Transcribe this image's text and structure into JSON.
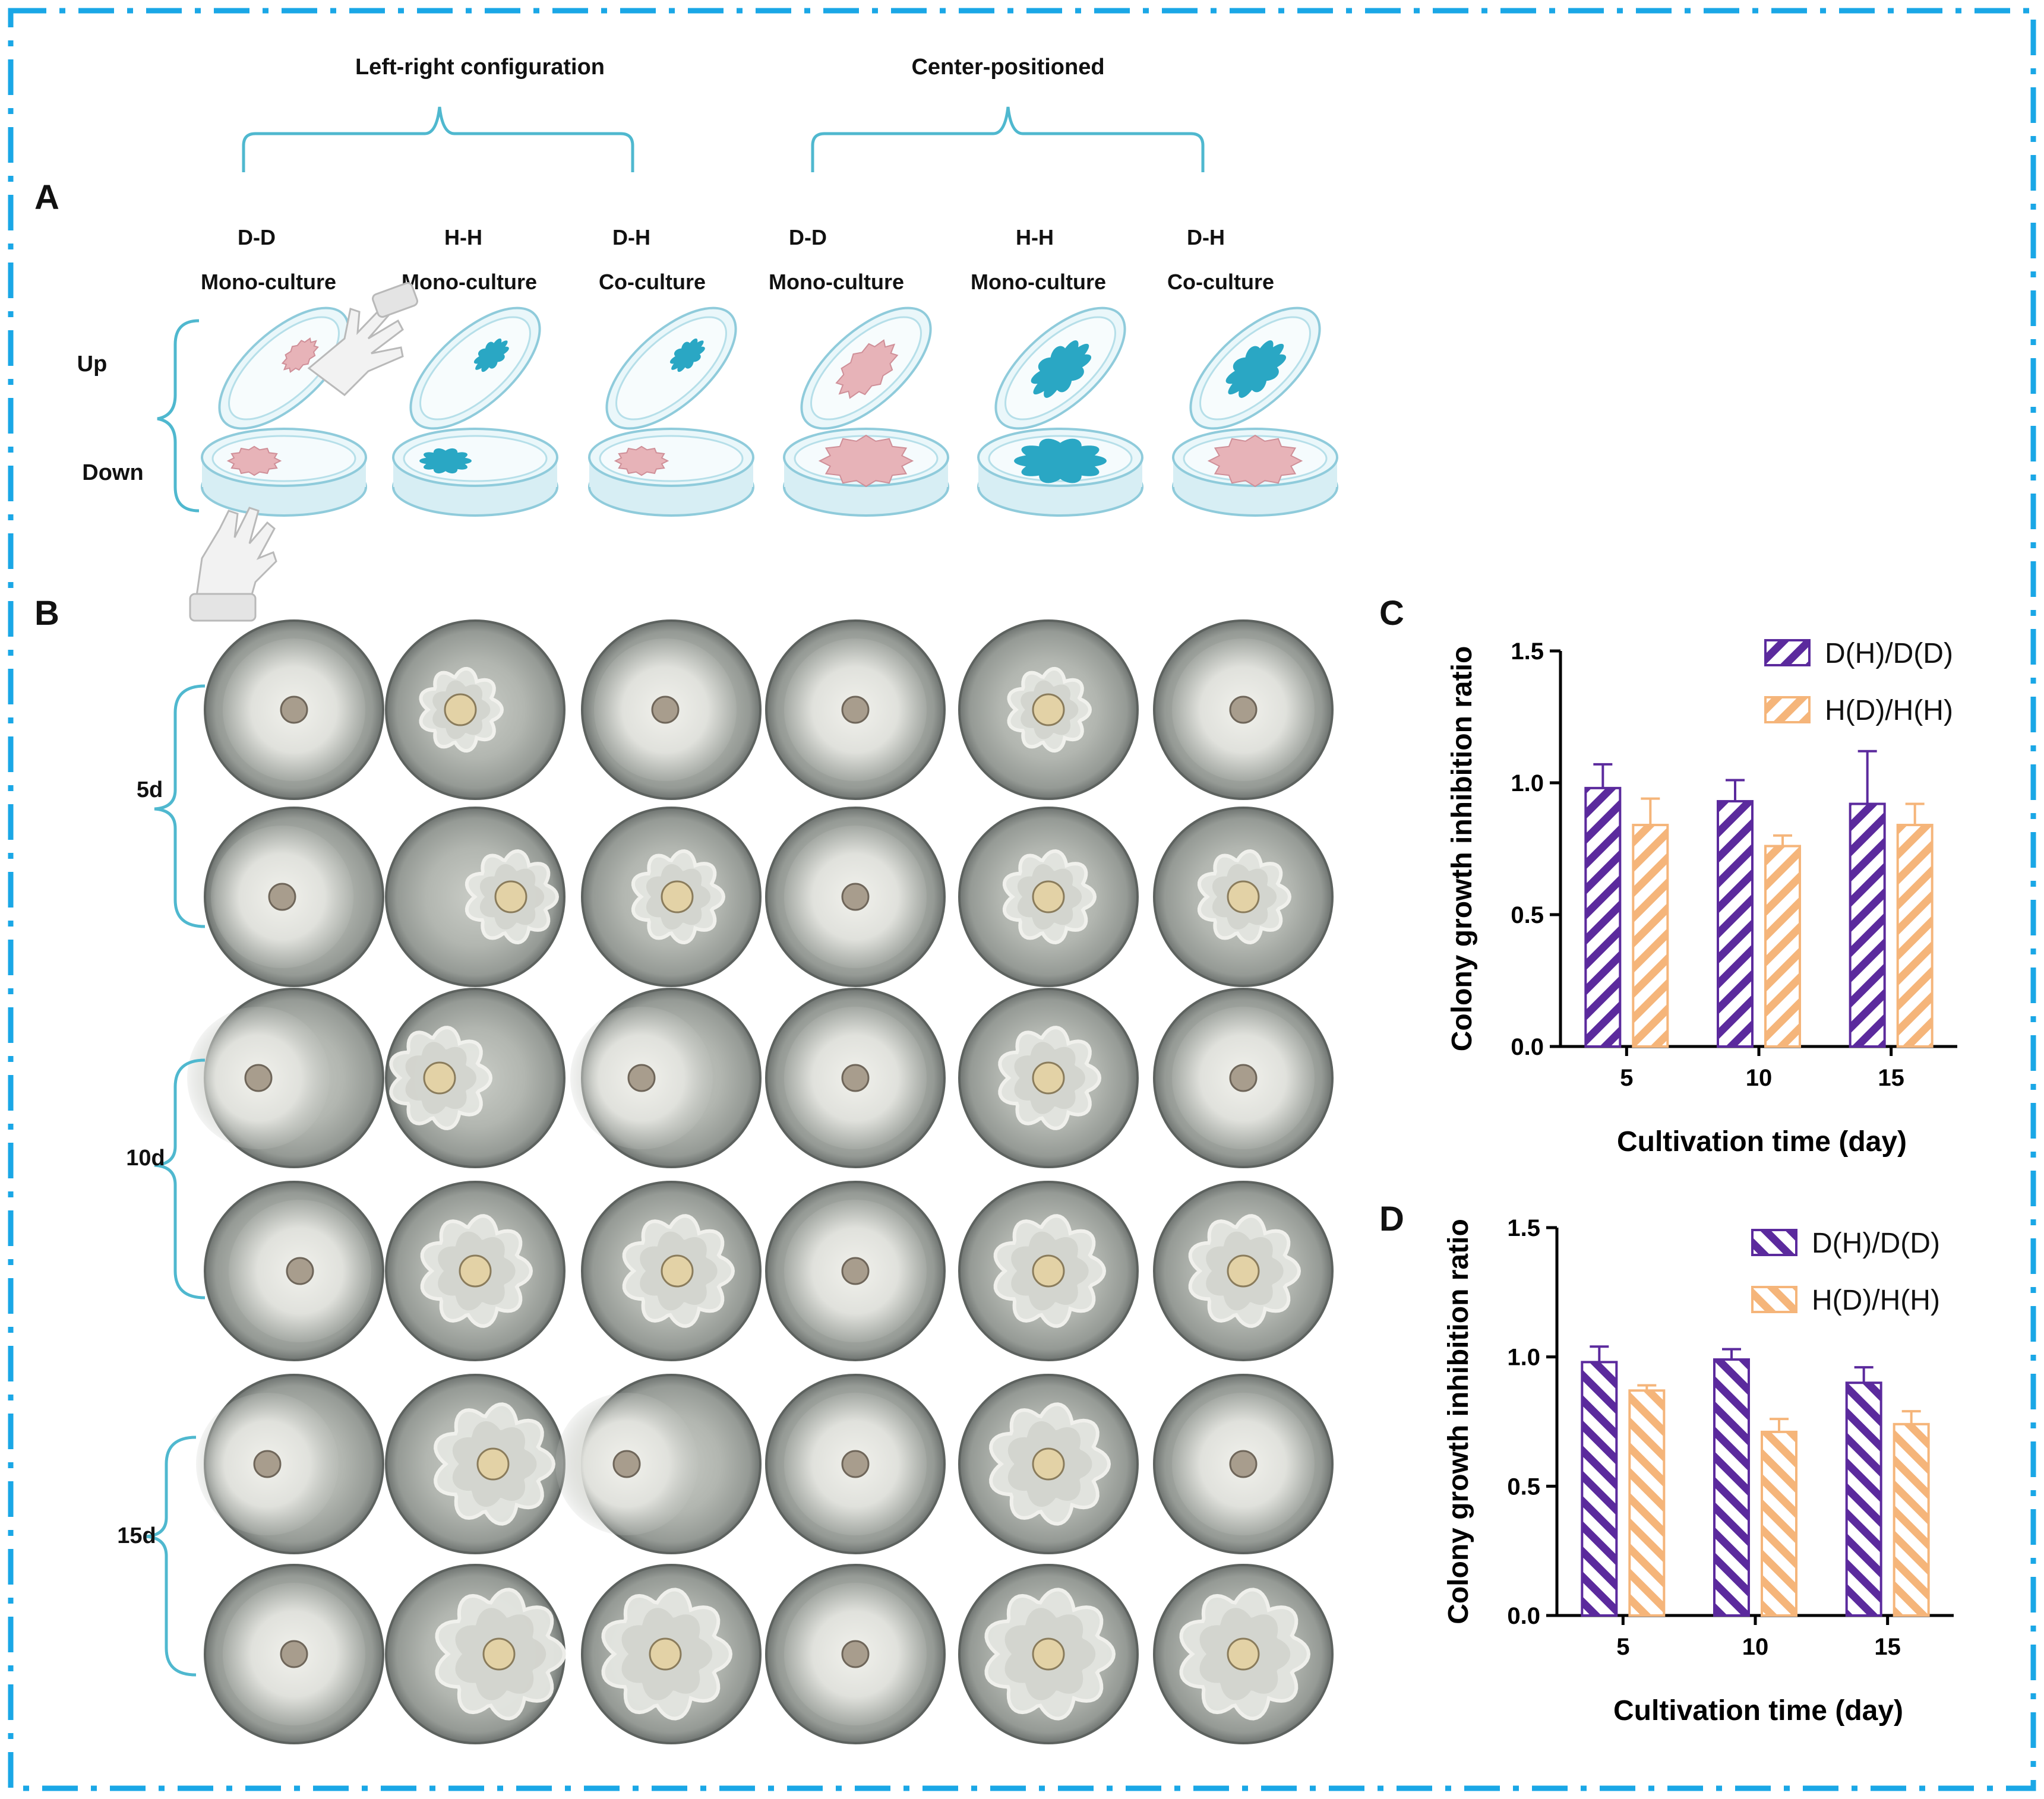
{
  "figure": {
    "border_color": "#1aa7e6",
    "panel_letters": {
      "A": "A",
      "B": "B",
      "C": "C",
      "D": "D"
    }
  },
  "panel_a": {
    "group_titles": [
      "Left-right configuration",
      "Center-positioned"
    ],
    "conditions": [
      {
        "pair": "D-D",
        "kind": "Mono-culture",
        "upper": "pink",
        "lower": "pink"
      },
      {
        "pair": "H-H",
        "kind": "Mono-culture",
        "upper": "teal",
        "lower": "teal"
      },
      {
        "pair": "D-H",
        "kind": "Co-culture",
        "upper": "teal",
        "lower": "pink"
      },
      {
        "pair": "D-D",
        "kind": "Mono-culture",
        "upper": "pink",
        "lower": "pink"
      },
      {
        "pair": "H-H",
        "kind": "Mono-culture",
        "upper": "teal",
        "lower": "teal"
      },
      {
        "pair": "D-H",
        "kind": "Co-culture",
        "upper": "teal",
        "lower": "pink"
      }
    ],
    "side_labels": {
      "up": "Up",
      "down": "Down"
    },
    "colors": {
      "dish": "#bfe3ec",
      "pink_colony": "#e7b3b8",
      "teal_colony": "#2aa7c4"
    }
  },
  "panel_b": {
    "time_labels": [
      "5d",
      "10d",
      "15d"
    ],
    "grid_note": "6 columns x 6 rows of culture plate photographs"
  },
  "chart_data": [
    {
      "panel": "C",
      "type": "bar",
      "categories": [
        "5",
        "10",
        "15"
      ],
      "series": [
        {
          "name": "D(H)/D(D)",
          "values": [
            0.98,
            0.93,
            0.92
          ],
          "errors": [
            0.09,
            0.08,
            0.2
          ],
          "color": "#5b2a9d"
        },
        {
          "name": "H(D)/H(H)",
          "values": [
            0.84,
            0.76,
            0.84
          ],
          "errors": [
            0.1,
            0.04,
            0.08
          ],
          "color": "#f5b57a"
        }
      ],
      "xlabel": "Cultivation time (day)",
      "ylabel": "Colony growth inhibition ratio",
      "ylim": [
        0,
        1.5
      ],
      "yticks": [
        "0.0",
        "0.5",
        "1.0",
        "1.5"
      ],
      "hatch": "forward"
    },
    {
      "panel": "D",
      "type": "bar",
      "categories": [
        "5",
        "10",
        "15"
      ],
      "series": [
        {
          "name": "D(H)/D(D)",
          "values": [
            0.98,
            0.99,
            0.9
          ],
          "errors": [
            0.06,
            0.04,
            0.06
          ],
          "color": "#5b2a9d"
        },
        {
          "name": "H(D)/H(H)",
          "values": [
            0.87,
            0.71,
            0.74
          ],
          "errors": [
            0.02,
            0.05,
            0.05
          ],
          "color": "#f5b57a"
        }
      ],
      "xlabel": "Cultivation time (day)",
      "ylabel": "Colony growth inhibition ratio",
      "ylim": [
        0,
        1.5
      ],
      "yticks": [
        "0.0",
        "0.5",
        "1.0",
        "1.5"
      ],
      "hatch": "backward"
    }
  ]
}
